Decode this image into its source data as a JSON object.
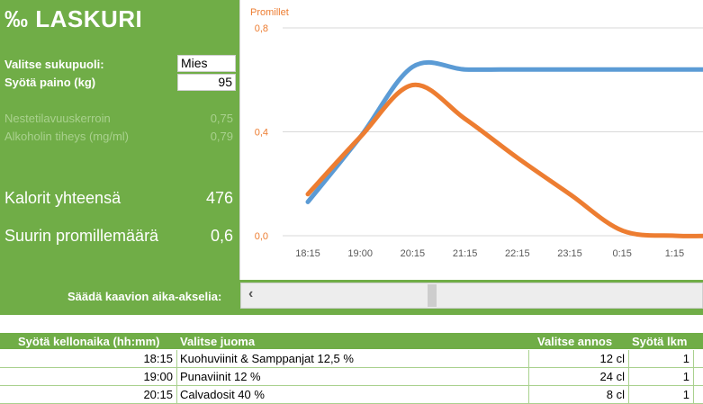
{
  "app": {
    "title": "‰ LASKURI"
  },
  "inputs": {
    "gender_label": "Valitse sukupuoli:",
    "gender_value": "Mies",
    "weight_label": "Syötä paino (kg)",
    "weight_value": "95"
  },
  "constants": {
    "fluid_label": "Nestetilavuuskerroin",
    "fluid_value": "0,75",
    "density_label": "Alkoholin tiheys (mg/ml)",
    "density_value": "0,79"
  },
  "results": {
    "calories_label": "Kalorit yhteensä",
    "calories_value": "476",
    "max_label": "Suurin promillemäärä",
    "max_value": "0,6"
  },
  "chart_data": {
    "type": "line",
    "ylabel": "Promillet",
    "ylim": [
      0,
      0.8
    ],
    "yticks": [
      "0,8",
      "0,4",
      "0,0"
    ],
    "categories": [
      "18:15",
      "19:00",
      "20:15",
      "21:15",
      "22:15",
      "23:15",
      "0:15",
      "1:15"
    ],
    "series": [
      {
        "color": "#5b9bd5",
        "values": [
          0.13,
          0.38,
          0.65,
          0.64,
          0.64,
          0.64,
          0.64,
          0.64
        ]
      },
      {
        "color": "#ed7d31",
        "values": [
          0.16,
          0.38,
          0.58,
          0.45,
          0.3,
          0.16,
          0.02,
          0.0
        ]
      }
    ]
  },
  "scroll": {
    "label": "Säädä kaavion aika-akselia:"
  },
  "table": {
    "headers": [
      "Syötä kellonaika (hh:mm)",
      "Valitse juoma",
      "Valitse annos",
      "Syötä lkm"
    ],
    "rows": [
      {
        "time": "18:15",
        "drink": "Kuohuviinit & Samppanjat 12,5 %",
        "portion": "12 cl",
        "count": "1"
      },
      {
        "time": "19:00",
        "drink": "Punaviinit 12 %",
        "portion": "24 cl",
        "count": "1"
      },
      {
        "time": "20:15",
        "drink": "Calvadosit 40 %",
        "portion": "8 cl",
        "count": "1"
      }
    ]
  }
}
